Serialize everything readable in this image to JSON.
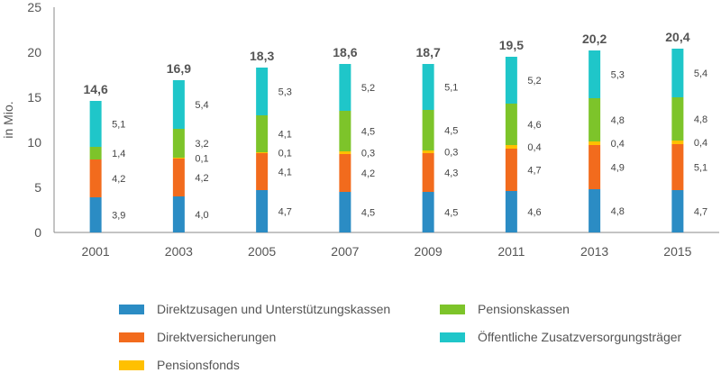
{
  "chart_data": {
    "type": "bar",
    "stacked": true,
    "title": "",
    "xlabel": "",
    "ylabel": "in Mio.",
    "ylim": [
      0,
      25
    ],
    "yticks": [
      "0",
      "5",
      "10",
      "15",
      "20",
      "25"
    ],
    "categories": [
      "2001",
      "2003",
      "2005",
      "2007",
      "2009",
      "2011",
      "2013",
      "2015"
    ],
    "totals": [
      "14,6",
      "16,9",
      "18,3",
      "18,6",
      "18,7",
      "19,5",
      "20,2",
      "20,4"
    ],
    "series": [
      {
        "name": "Direktzusagen und Unterstützungskassen",
        "color": "#2b8cc4",
        "values": [
          3.9,
          4.0,
          4.7,
          4.5,
          4.5,
          4.6,
          4.8,
          4.7
        ],
        "labels": [
          "3,9",
          "4,0",
          "4,7",
          "4,5",
          "4,5",
          "4,6",
          "4,8",
          "4,7"
        ]
      },
      {
        "name": "Direktversicherungen",
        "color": "#f26b1d",
        "values": [
          4.2,
          4.2,
          4.1,
          4.2,
          4.3,
          4.7,
          4.9,
          5.1
        ],
        "labels": [
          "4,2",
          "4,2",
          "4,1",
          "4,2",
          "4,3",
          "4,7",
          "4,9",
          "5,1"
        ]
      },
      {
        "name": "Pensionsfonds",
        "color": "#ffc000",
        "values": [
          0,
          0.1,
          0.1,
          0.3,
          0.3,
          0.4,
          0.4,
          0.4
        ],
        "labels": [
          "",
          "0,1",
          "0,1",
          "0,3",
          "0,3",
          "0,4",
          "0,4",
          "0,4"
        ]
      },
      {
        "name": "Pensionskassen",
        "color": "#7dc42a",
        "values": [
          1.4,
          3.2,
          4.1,
          4.5,
          4.5,
          4.6,
          4.8,
          4.8
        ],
        "labels": [
          "1,4",
          "3,2",
          "4,1",
          "4,5",
          "4,5",
          "4,6",
          "4,8",
          "4,8"
        ]
      },
      {
        "name": "Öffentliche Zusatzversorgungsträger",
        "color": "#1fc6c9",
        "values": [
          5.1,
          5.4,
          5.3,
          5.2,
          5.1,
          5.2,
          5.3,
          5.4
        ],
        "labels": [
          "5,1",
          "5,4",
          "5,3",
          "5,2",
          "5,1",
          "5,2",
          "5,3",
          "5,4"
        ]
      }
    ],
    "legend": {
      "placement": "bottom",
      "order": [
        0,
        3,
        1,
        4,
        2
      ]
    }
  }
}
